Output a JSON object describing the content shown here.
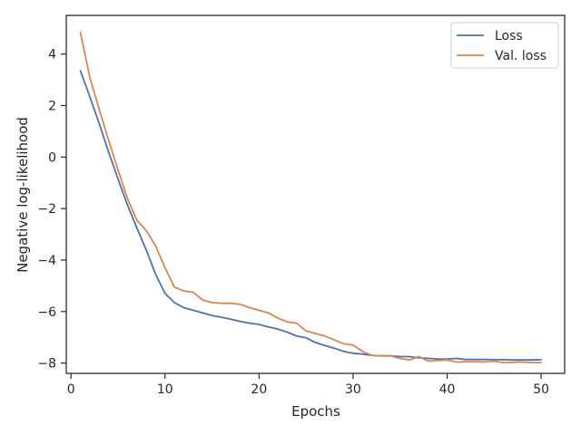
{
  "chart_data": {
    "type": "line",
    "xlabel": "Epochs",
    "ylabel": "Negative log-likelihood",
    "xlim": [
      -0.5,
      52.5
    ],
    "ylim": [
      -8.4,
      5.5
    ],
    "xticks": [
      0,
      10,
      20,
      30,
      40,
      50
    ],
    "yticks": [
      -8,
      -6,
      -4,
      -2,
      0,
      2,
      4
    ],
    "xtick_labels": [
      "0",
      "10",
      "20",
      "30",
      "40",
      "50"
    ],
    "ytick_labels": [
      "−8",
      "−6",
      "−4",
      "−2",
      "0",
      "2",
      "4"
    ],
    "grid": false,
    "legend_position": "top-right",
    "x": [
      1,
      2,
      3,
      4,
      5,
      6,
      7,
      8,
      9,
      10,
      11,
      12,
      13,
      14,
      15,
      16,
      17,
      18,
      19,
      20,
      21,
      22,
      23,
      24,
      25,
      26,
      27,
      28,
      29,
      30,
      31,
      32,
      33,
      34,
      35,
      36,
      37,
      38,
      39,
      40,
      41,
      42,
      43,
      44,
      45,
      46,
      47,
      48,
      49,
      50
    ],
    "series": [
      {
        "name": "Loss",
        "color": "#4c72b0",
        "values": [
          3.35,
          2.35,
          1.3,
          0.2,
          -0.85,
          -1.85,
          -2.75,
          -3.6,
          -4.55,
          -5.3,
          -5.65,
          -5.85,
          -5.95,
          -6.05,
          -6.15,
          -6.22,
          -6.3,
          -6.38,
          -6.45,
          -6.5,
          -6.6,
          -6.68,
          -6.8,
          -6.95,
          -7.02,
          -7.2,
          -7.32,
          -7.42,
          -7.55,
          -7.62,
          -7.65,
          -7.7,
          -7.72,
          -7.72,
          -7.75,
          -7.75,
          -7.8,
          -7.82,
          -7.84,
          -7.84,
          -7.82,
          -7.86,
          -7.86,
          -7.86,
          -7.87,
          -7.87,
          -7.88,
          -7.88,
          -7.88,
          -7.87
        ]
      },
      {
        "name": "Val. loss",
        "color": "#dd8452",
        "values": [
          4.85,
          3.1,
          1.85,
          0.65,
          -0.5,
          -1.6,
          -2.45,
          -2.85,
          -3.45,
          -4.3,
          -5.05,
          -5.2,
          -5.25,
          -5.55,
          -5.65,
          -5.68,
          -5.68,
          -5.72,
          -5.85,
          -5.95,
          -6.05,
          -6.25,
          -6.4,
          -6.45,
          -6.75,
          -6.85,
          -6.95,
          -7.1,
          -7.25,
          -7.3,
          -7.55,
          -7.7,
          -7.72,
          -7.72,
          -7.82,
          -7.88,
          -7.75,
          -7.92,
          -7.9,
          -7.88,
          -7.96,
          -7.95,
          -7.95,
          -7.96,
          -7.93,
          -7.98,
          -7.97,
          -7.96,
          -7.98,
          -7.98
        ]
      }
    ]
  }
}
